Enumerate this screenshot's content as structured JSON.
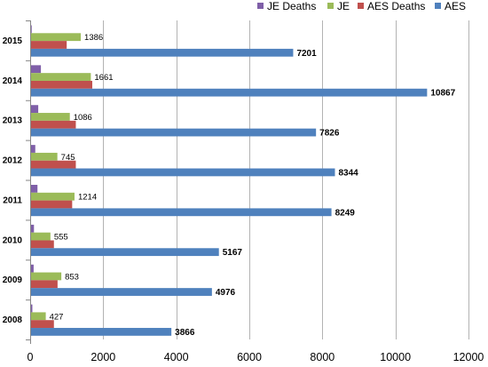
{
  "chart_data": {
    "type": "bar",
    "orientation": "horizontal",
    "categories": [
      "2015",
      "2014",
      "2013",
      "2012",
      "2011",
      "2010",
      "2009",
      "2008"
    ],
    "series": [
      {
        "name": "JE Deaths",
        "color": "#7F5FA8",
        "values": [
          42,
          294,
          221,
          140,
          200,
          104,
          95,
          60
        ]
      },
      {
        "name": "JE",
        "color": "#9BBB59",
        "values": [
          1386,
          1661,
          1086,
          745,
          1214,
          555,
          853,
          427
        ],
        "labels": [
          "1386",
          "1661",
          "1086",
          "745",
          "1214",
          "555",
          "853",
          "427"
        ]
      },
      {
        "name": "AES Deaths",
        "color": "#C0504D",
        "values": [
          1000,
          1700,
          1250,
          1250,
          1150,
          650,
          750,
          650
        ]
      },
      {
        "name": "AES",
        "color": "#4F81BD",
        "values": [
          7201,
          10867,
          7826,
          8344,
          8249,
          5167,
          4976,
          3866
        ],
        "labels": [
          "7201",
          "10867",
          "7826",
          "8344",
          "8249",
          "5167",
          "4976",
          "3866"
        ]
      }
    ],
    "legend": {
      "position": "top-right",
      "order": [
        "JE Deaths",
        "JE",
        "AES Deaths",
        "AES"
      ]
    },
    "x_axis": {
      "range": [
        0,
        12000
      ],
      "ticks": [
        0,
        2000,
        4000,
        6000,
        8000,
        10000,
        12000
      ],
      "tick_labels": [
        "0",
        "2000",
        "4000",
        "6000",
        "8000",
        "10000",
        "12000"
      ]
    },
    "grid": true,
    "title": "",
    "xlabel": "",
    "ylabel": ""
  }
}
